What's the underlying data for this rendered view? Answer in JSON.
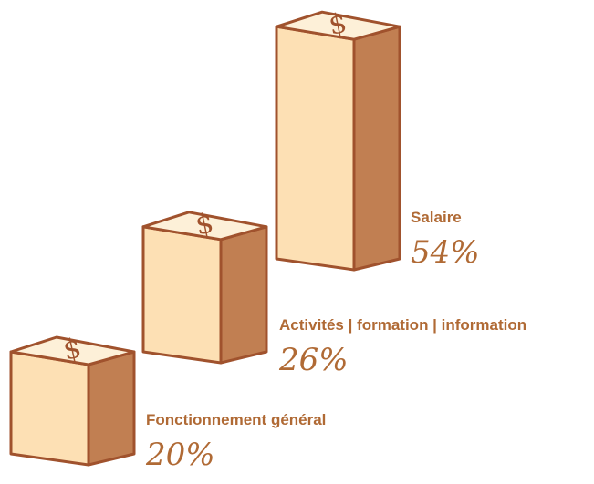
{
  "chart_data": {
    "type": "bar3d",
    "categories": [
      "Fonctionnement général",
      "Activités | formation | information",
      "Salaire"
    ],
    "values": [
      20,
      26,
      54
    ],
    "value_labels": [
      "20%",
      "26%",
      "54%"
    ],
    "color": "#fde0b4"
  }
}
